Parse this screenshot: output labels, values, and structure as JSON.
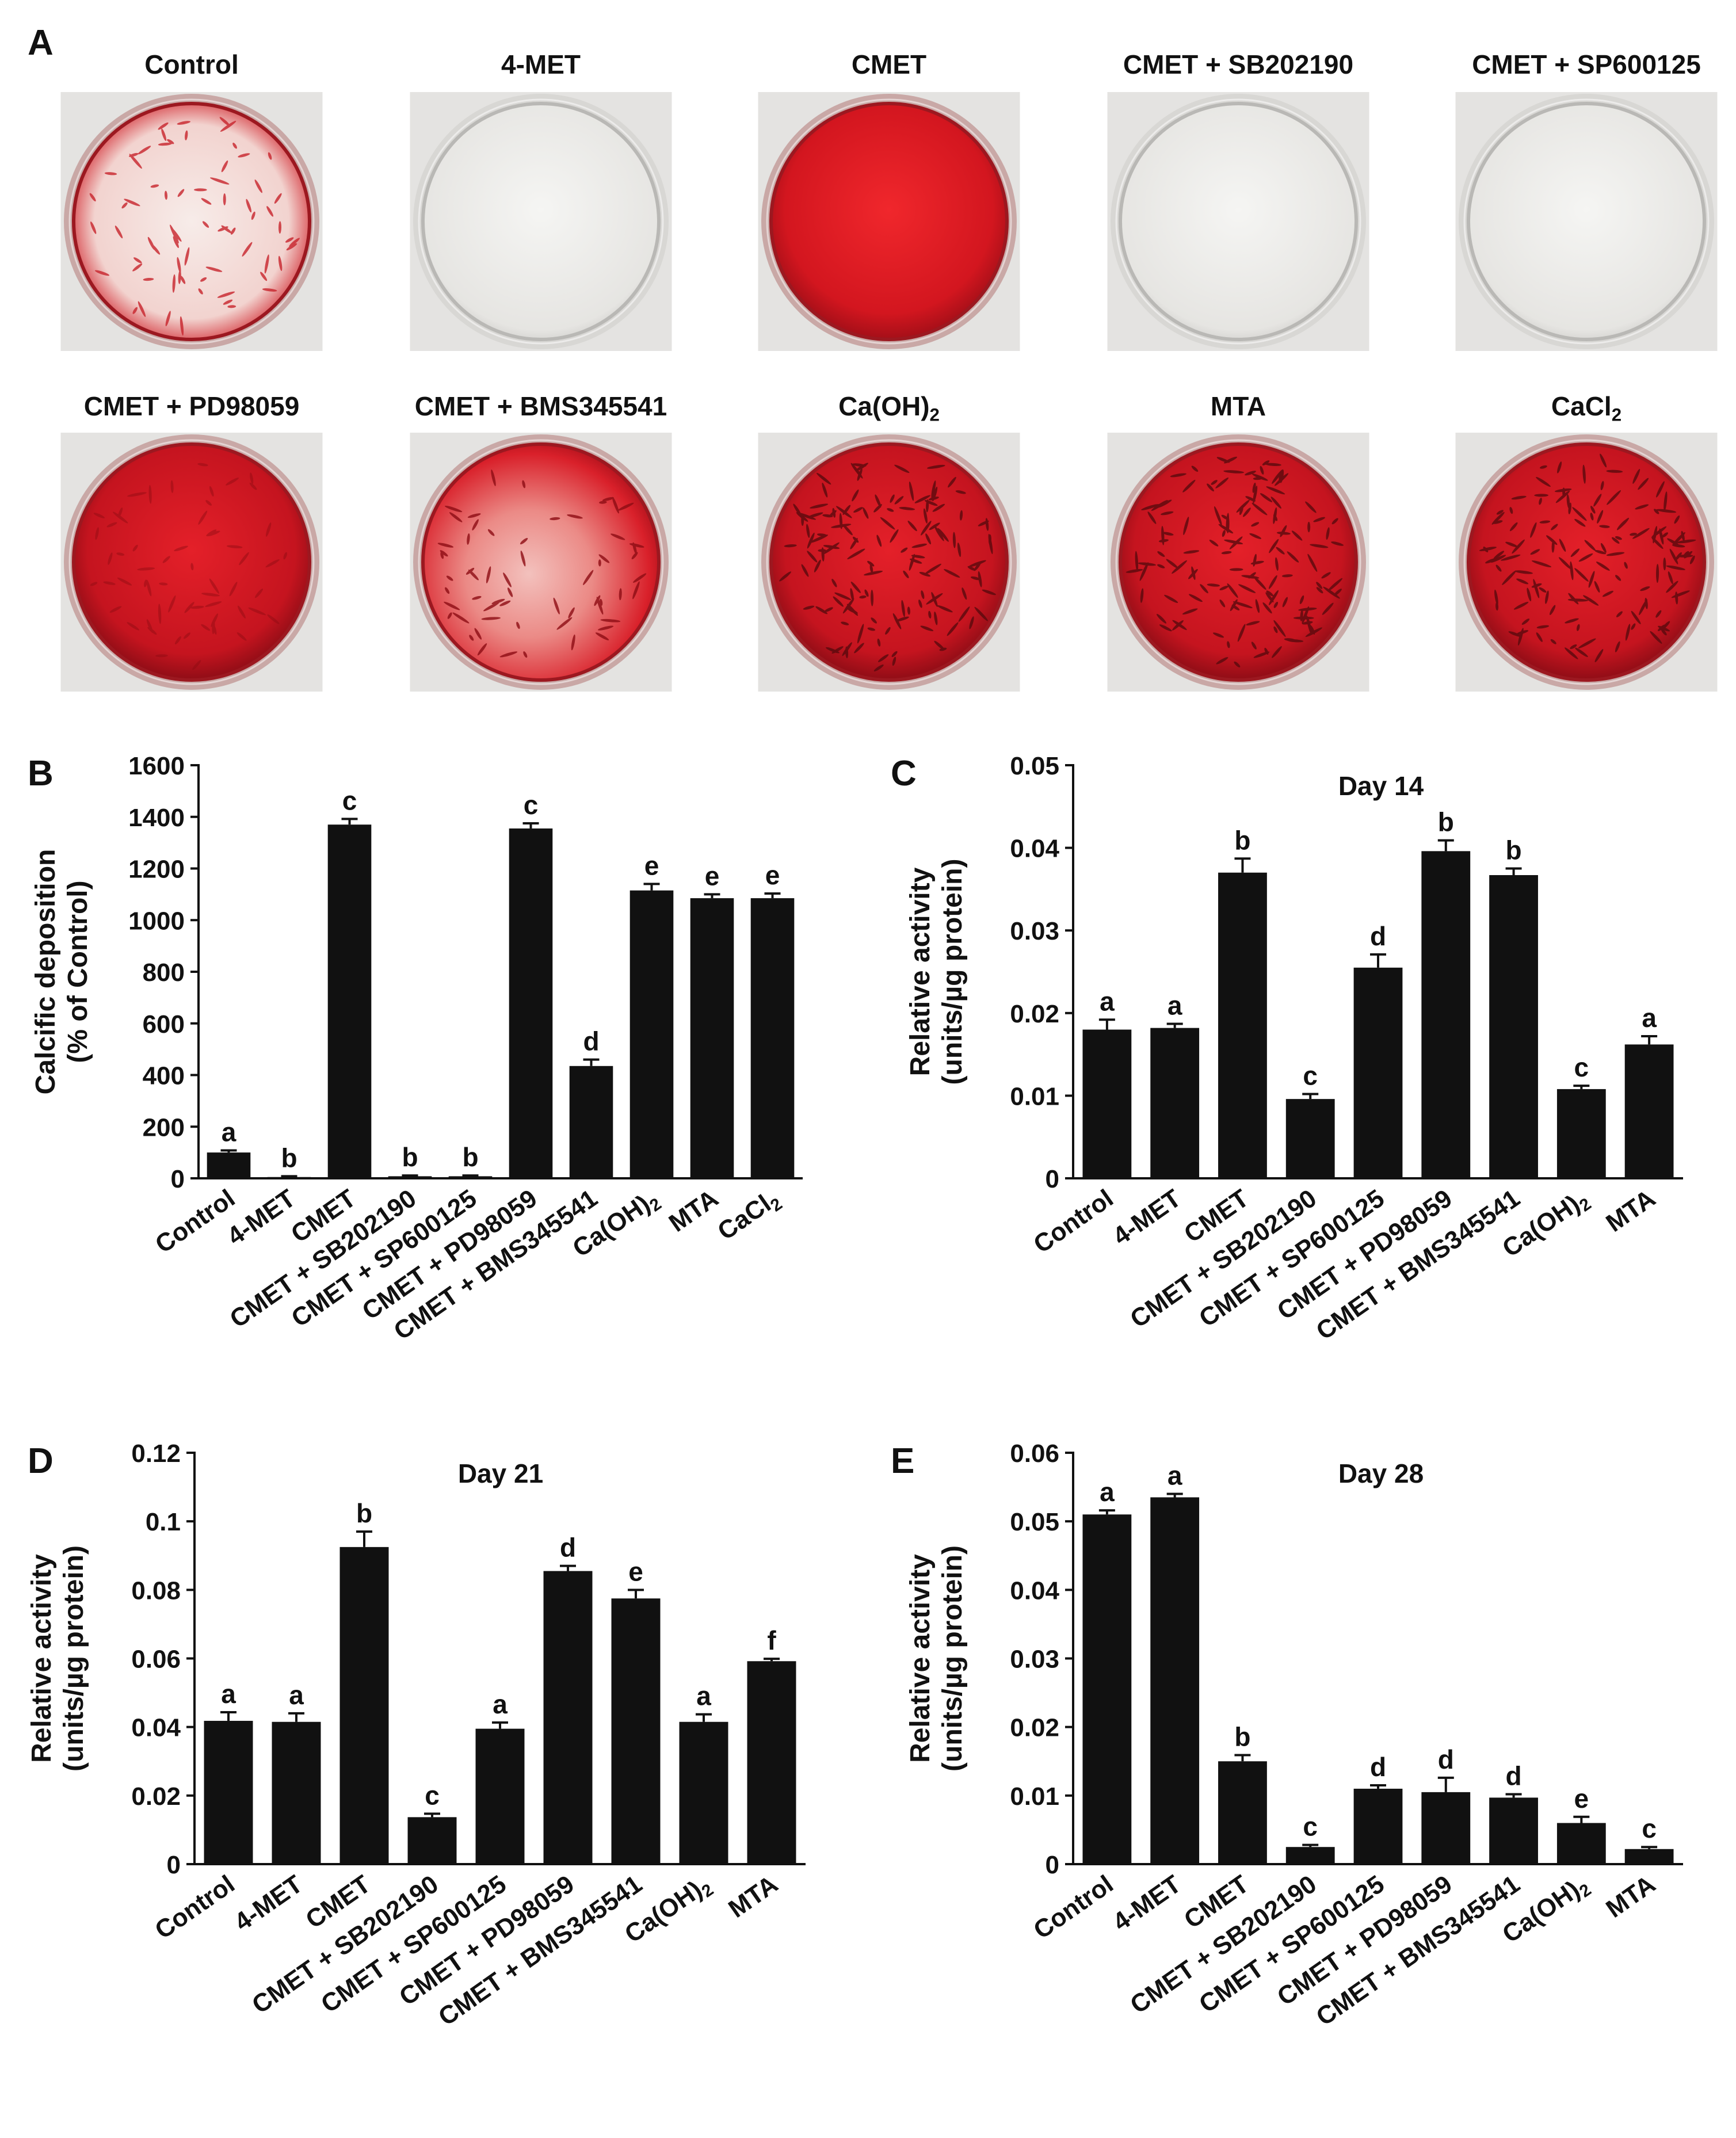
{
  "figure": {
    "panel_letters": [
      "A",
      "B",
      "C",
      "D",
      "E"
    ],
    "dishes": [
      {
        "label": "Control",
        "stain": "sparse"
      },
      {
        "label": "4-MET",
        "stain": "none"
      },
      {
        "label": "CMET",
        "stain": "solid"
      },
      {
        "label": "CMET + SB202190",
        "stain": "none"
      },
      {
        "label": "CMET + SP600125",
        "stain": "none"
      },
      {
        "label": "CMET + PD98059",
        "stain": "dense"
      },
      {
        "label": "CMET + BMS345541",
        "stain": "partial"
      },
      {
        "label": "Ca(OH)2",
        "stain": "nodular"
      },
      {
        "label": "MTA",
        "stain": "nodular"
      },
      {
        "label": "CaCl2",
        "stain": "nodular"
      }
    ],
    "colors": {
      "bar": "#111111",
      "stain_red": "#d11f2a",
      "dish_clear": "#ecebe9",
      "background": "#ffffff"
    }
  },
  "chart_data": [
    {
      "panel": "B",
      "type": "bar",
      "title": "",
      "ylabel_lines": [
        "Calcific deposition",
        "(% of Control)"
      ],
      "ylim": [
        0,
        1600
      ],
      "yticks": [
        0,
        200,
        400,
        600,
        800,
        1000,
        1200,
        1400,
        1600
      ],
      "categories": [
        "Control",
        "4-MET",
        "CMET",
        "CMET + SB202190",
        "CMET + SP600125",
        "CMET + PD98059",
        "CMET + BMS345541",
        "Ca(OH)2",
        "MTA",
        "CaCl2"
      ],
      "values": [
        100,
        5,
        1370,
        8,
        8,
        1355,
        435,
        1115,
        1085,
        1085
      ],
      "errors": [
        8,
        3,
        22,
        3,
        3,
        20,
        25,
        25,
        15,
        18
      ],
      "letters": [
        "a",
        "b",
        "c",
        "b",
        "b",
        "c",
        "d",
        "e",
        "e",
        "e"
      ]
    },
    {
      "panel": "C",
      "type": "bar",
      "title": "Day 14",
      "ylabel_lines": [
        "Relative activity",
        "(units/µg protein)"
      ],
      "ylim": [
        0,
        0.05
      ],
      "yticks": [
        0,
        0.01,
        0.02,
        0.03,
        0.04,
        0.05
      ],
      "categories": [
        "Control",
        "4-MET",
        "CMET",
        "CMET + SB202190",
        "CMET + SP600125",
        "CMET + PD98059",
        "CMET + BMS345541",
        "Ca(OH)2",
        "MTA"
      ],
      "values": [
        0.018,
        0.0182,
        0.037,
        0.0096,
        0.0255,
        0.0396,
        0.0367,
        0.0108,
        0.0162
      ],
      "errors": [
        0.0012,
        0.0005,
        0.0017,
        0.0006,
        0.0016,
        0.0013,
        0.0008,
        0.0004,
        0.001
      ],
      "letters": [
        "a",
        "a",
        "b",
        "c",
        "d",
        "b",
        "b",
        "c",
        "a"
      ]
    },
    {
      "panel": "D",
      "type": "bar",
      "title": "Day 21",
      "ylabel_lines": [
        "Relative activity",
        "(units/µg protein)"
      ],
      "ylim": [
        0,
        0.12
      ],
      "yticks": [
        0,
        0.02,
        0.04,
        0.06,
        0.08,
        0.1,
        0.12
      ],
      "categories": [
        "Control",
        "4-MET",
        "CMET",
        "CMET + SB202190",
        "CMET + SP600125",
        "CMET + PD98059",
        "CMET + BMS345541",
        "Ca(OH)2",
        "MTA"
      ],
      "values": [
        0.0418,
        0.0415,
        0.0925,
        0.0137,
        0.0395,
        0.0855,
        0.0775,
        0.0415,
        0.0592
      ],
      "errors": [
        0.0025,
        0.0025,
        0.0045,
        0.001,
        0.0018,
        0.0015,
        0.0025,
        0.0022,
        0.0007
      ],
      "letters": [
        "a",
        "a",
        "b",
        "c",
        "a",
        "d",
        "e",
        "a",
        "f"
      ]
    },
    {
      "panel": "E",
      "type": "bar",
      "title": "Day 28",
      "ylabel_lines": [
        "Relative activity",
        "(units/µg protein)"
      ],
      "ylim": [
        0,
        0.06
      ],
      "yticks": [
        0,
        0.01,
        0.02,
        0.03,
        0.04,
        0.05,
        0.06
      ],
      "categories": [
        "Control",
        "4-MET",
        "CMET",
        "CMET + SB202190",
        "CMET + SP600125",
        "CMET + PD98059",
        "CMET + BMS345541",
        "Ca(OH)2",
        "MTA"
      ],
      "values": [
        0.051,
        0.0535,
        0.015,
        0.0025,
        0.011,
        0.0105,
        0.0097,
        0.006,
        0.0022
      ],
      "errors": [
        0.0006,
        0.0005,
        0.0009,
        0.0003,
        0.0005,
        0.0021,
        0.0005,
        0.0009,
        0.0003
      ],
      "letters": [
        "a",
        "a",
        "b",
        "c",
        "d",
        "d",
        "d",
        "e",
        "c"
      ]
    }
  ]
}
